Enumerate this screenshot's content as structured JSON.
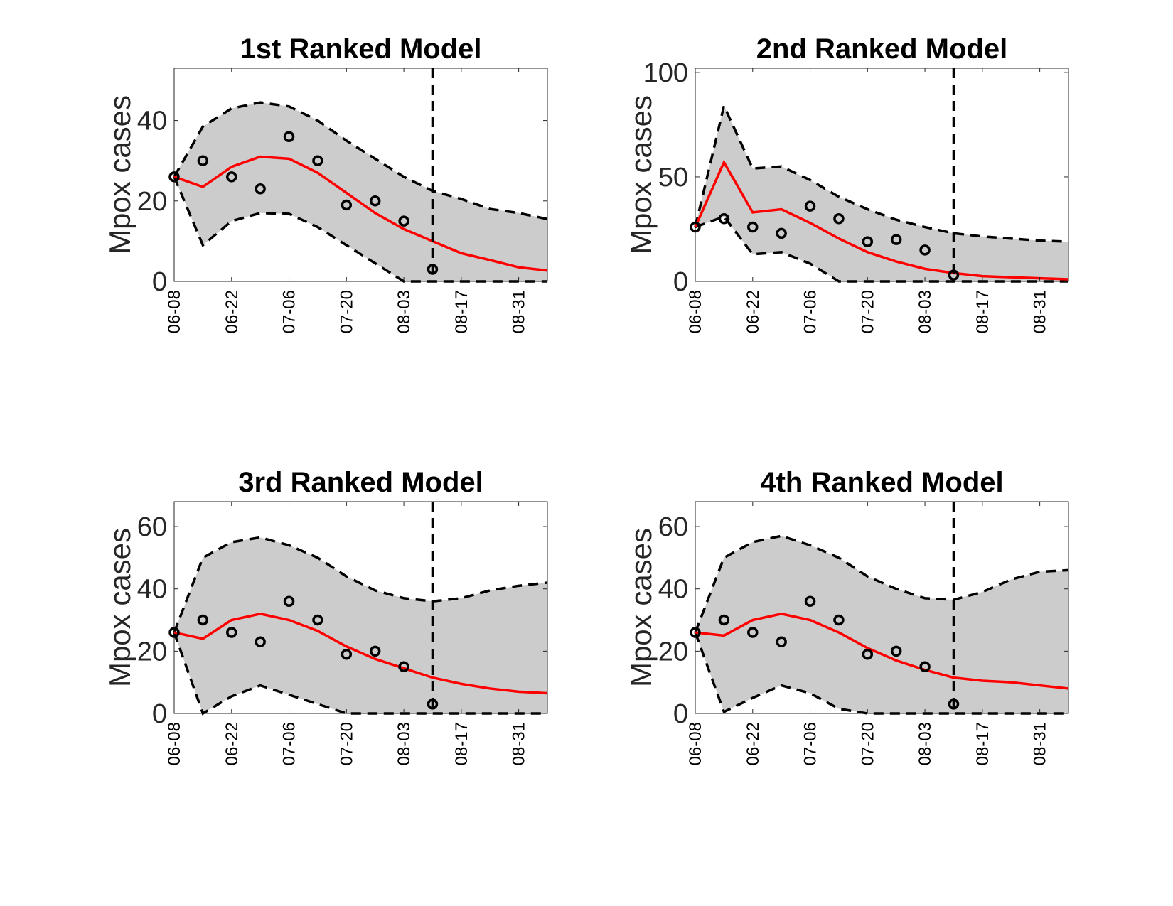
{
  "figure": {
    "background": "#ffffff"
  },
  "colors": {
    "band_fill": "#cccccc",
    "median_line": "#ff0000",
    "bounds_line": "#000000",
    "observed_marker": "#000000",
    "forecast_start_line": "#000000"
  },
  "chart_data": [
    {
      "type": "line",
      "title": "1st Ranked Model",
      "ylabel": "Mpox cases",
      "xlabel": "",
      "x_dates": [
        "06-08",
        "06-15",
        "06-22",
        "06-29",
        "07-06",
        "07-13",
        "07-20",
        "07-27",
        "08-03",
        "08-10",
        "08-17",
        "08-24",
        "08-31",
        "09-07"
      ],
      "x_tick_labels": [
        "06-08",
        "06-22",
        "07-06",
        "07-20",
        "08-03",
        "08-17",
        "08-31"
      ],
      "ylim": [
        0,
        53
      ],
      "y_ticks": [
        0,
        20,
        40
      ],
      "forecast_start": "08-10",
      "observed": {
        "x": [
          "06-08",
          "06-15",
          "06-22",
          "06-29",
          "07-06",
          "07-13",
          "07-20",
          "07-27",
          "08-03",
          "08-10"
        ],
        "y": [
          26,
          30,
          26,
          23,
          36,
          30,
          19,
          20,
          15,
          3
        ]
      },
      "series": [
        {
          "role": "median",
          "values": [
            26,
            23.5,
            28.5,
            31,
            30.5,
            27,
            22,
            17,
            13,
            10,
            7,
            5.3,
            3.5,
            2.7
          ]
        },
        {
          "role": "upper",
          "values": [
            26,
            38.5,
            43,
            44.5,
            43.5,
            40,
            35,
            30.5,
            26,
            22.5,
            20.5,
            18,
            17,
            15.5
          ]
        },
        {
          "role": "lower",
          "values": [
            26,
            9,
            15,
            17,
            16.8,
            13.5,
            9,
            4.5,
            0,
            0,
            0,
            0,
            0,
            0
          ]
        }
      ]
    },
    {
      "type": "line",
      "title": "2nd Ranked Model",
      "ylabel": "Mpox cases",
      "xlabel": "",
      "x_dates": [
        "06-08",
        "06-15",
        "06-22",
        "06-29",
        "07-06",
        "07-13",
        "07-20",
        "07-27",
        "08-03",
        "08-10",
        "08-17",
        "08-24",
        "08-31",
        "09-07"
      ],
      "x_tick_labels": [
        "06-08",
        "06-22",
        "07-06",
        "07-20",
        "08-03",
        "08-17",
        "08-31"
      ],
      "ylim": [
        0,
        102
      ],
      "y_ticks": [
        0,
        50,
        100
      ],
      "forecast_start": "08-10",
      "observed": {
        "x": [
          "06-08",
          "06-15",
          "06-22",
          "06-29",
          "07-06",
          "07-13",
          "07-20",
          "07-27",
          "08-03",
          "08-10"
        ],
        "y": [
          26,
          30,
          26,
          23,
          36,
          30,
          19,
          20,
          15,
          3
        ]
      },
      "series": [
        {
          "role": "median",
          "values": [
            26,
            57,
            33,
            34.5,
            28,
            20.5,
            14,
            9.5,
            6,
            4,
            2.5,
            2,
            1.5,
            1
          ]
        },
        {
          "role": "upper",
          "values": [
            26,
            84,
            54,
            55,
            48.5,
            40.5,
            34.5,
            29.5,
            26,
            23,
            21.5,
            20.5,
            19.5,
            19
          ]
        },
        {
          "role": "lower",
          "values": [
            26,
            31,
            13,
            14,
            8.5,
            0,
            0,
            0,
            0,
            0,
            0,
            0,
            0,
            0
          ]
        }
      ]
    },
    {
      "type": "line",
      "title": "3rd Ranked Model",
      "ylabel": "Mpox cases",
      "xlabel": "",
      "x_dates": [
        "06-08",
        "06-15",
        "06-22",
        "06-29",
        "07-06",
        "07-13",
        "07-20",
        "07-27",
        "08-03",
        "08-10",
        "08-17",
        "08-24",
        "08-31",
        "09-07"
      ],
      "x_tick_labels": [
        "06-08",
        "06-22",
        "07-06",
        "07-20",
        "08-03",
        "08-17",
        "08-31"
      ],
      "ylim": [
        0,
        68
      ],
      "y_ticks": [
        0,
        20,
        40,
        60
      ],
      "forecast_start": "08-10",
      "observed": {
        "x": [
          "06-08",
          "06-15",
          "06-22",
          "06-29",
          "07-06",
          "07-13",
          "07-20",
          "07-27",
          "08-03",
          "08-10"
        ],
        "y": [
          26,
          30,
          26,
          23,
          36,
          30,
          19,
          20,
          15,
          3
        ]
      },
      "series": [
        {
          "role": "median",
          "values": [
            26,
            24,
            30,
            32,
            30,
            26.5,
            21.5,
            17.5,
            14.5,
            11.5,
            9.5,
            8,
            7,
            6.5
          ]
        },
        {
          "role": "upper",
          "values": [
            26,
            50,
            55,
            56.5,
            54,
            50,
            44,
            39.5,
            37,
            36,
            37,
            39.5,
            41,
            42
          ]
        },
        {
          "role": "lower",
          "values": [
            26,
            0,
            5.5,
            9,
            6,
            3,
            0,
            0,
            0,
            0,
            0,
            0,
            0,
            0
          ]
        }
      ]
    },
    {
      "type": "line",
      "title": "4th Ranked Model",
      "ylabel": "Mpox cases",
      "xlabel": "",
      "x_dates": [
        "06-08",
        "06-15",
        "06-22",
        "06-29",
        "07-06",
        "07-13",
        "07-20",
        "07-27",
        "08-03",
        "08-10",
        "08-17",
        "08-24",
        "08-31",
        "09-07"
      ],
      "x_tick_labels": [
        "06-08",
        "06-22",
        "07-06",
        "07-20",
        "08-03",
        "08-17",
        "08-31"
      ],
      "ylim": [
        0,
        68
      ],
      "y_ticks": [
        0,
        20,
        40,
        60
      ],
      "forecast_start": "08-10",
      "observed": {
        "x": [
          "06-08",
          "06-15",
          "06-22",
          "06-29",
          "07-06",
          "07-13",
          "07-20",
          "07-27",
          "08-03",
          "08-10"
        ],
        "y": [
          26,
          30,
          26,
          23,
          36,
          30,
          19,
          20,
          15,
          3
        ]
      },
      "series": [
        {
          "role": "median",
          "values": [
            26,
            25,
            30,
            32,
            30,
            26,
            21,
            17,
            14,
            11.5,
            10.5,
            10,
            9,
            8
          ]
        },
        {
          "role": "upper",
          "values": [
            26,
            50,
            55,
            57,
            54,
            50,
            44,
            40,
            37,
            36.5,
            39,
            43,
            45.5,
            46
          ]
        },
        {
          "role": "lower",
          "values": [
            26,
            0.5,
            5,
            9,
            6.5,
            1.5,
            0,
            0,
            0,
            0,
            0,
            0,
            0,
            0
          ]
        }
      ]
    }
  ]
}
